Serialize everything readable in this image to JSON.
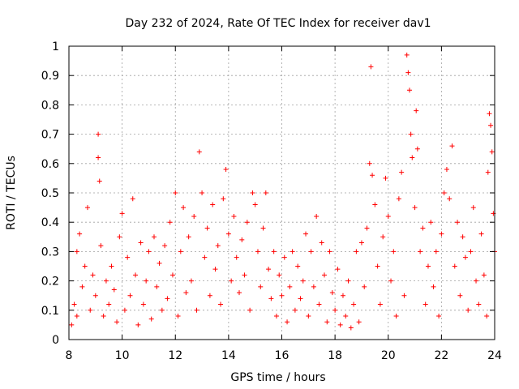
{
  "chart_data": {
    "type": "scatter",
    "title": "Day 232 of 2024, Rate Of TEC Index for receiver dav1",
    "xlabel": "GPS time / hours",
    "ylabel": "ROTI / TECUs",
    "xlim": [
      8,
      24
    ],
    "ylim": [
      0,
      1
    ],
    "xticks": [
      "8",
      "10",
      "12",
      "14",
      "16",
      "18",
      "20",
      "22",
      "24"
    ],
    "yticks": [
      "0",
      "0.1",
      "0.2",
      "0.3",
      "0.4",
      "0.5",
      "0.6",
      "0.7",
      "0.8",
      "0.9",
      "1"
    ],
    "grid": true,
    "marker": "+",
    "series_color": "#ff0000",
    "series": [
      {
        "name": "ROTI",
        "points": [
          [
            8.1,
            0.05
          ],
          [
            8.2,
            0.12
          ],
          [
            8.3,
            0.3
          ],
          [
            8.3,
            0.08
          ],
          [
            8.4,
            0.36
          ],
          [
            8.5,
            0.18
          ],
          [
            8.6,
            0.25
          ],
          [
            8.7,
            0.45
          ],
          [
            8.8,
            0.1
          ],
          [
            8.9,
            0.22
          ],
          [
            9.0,
            0.15
          ],
          [
            9.1,
            0.7
          ],
          [
            9.1,
            0.62
          ],
          [
            9.15,
            0.54
          ],
          [
            9.2,
            0.32
          ],
          [
            9.3,
            0.08
          ],
          [
            9.4,
            0.2
          ],
          [
            9.5,
            0.12
          ],
          [
            9.6,
            0.25
          ],
          [
            9.7,
            0.17
          ],
          [
            9.8,
            0.06
          ],
          [
            9.9,
            0.35
          ],
          [
            10.0,
            0.43
          ],
          [
            10.1,
            0.1
          ],
          [
            10.2,
            0.28
          ],
          [
            10.3,
            0.15
          ],
          [
            10.4,
            0.48
          ],
          [
            10.5,
            0.22
          ],
          [
            10.6,
            0.05
          ],
          [
            10.7,
            0.33
          ],
          [
            10.8,
            0.12
          ],
          [
            10.9,
            0.2
          ],
          [
            11.0,
            0.3
          ],
          [
            11.1,
            0.07
          ],
          [
            11.2,
            0.35
          ],
          [
            11.3,
            0.18
          ],
          [
            11.4,
            0.26
          ],
          [
            11.5,
            0.1
          ],
          [
            11.6,
            0.32
          ],
          [
            11.7,
            0.14
          ],
          [
            11.8,
            0.4
          ],
          [
            11.9,
            0.22
          ],
          [
            12.0,
            0.5
          ],
          [
            12.1,
            0.08
          ],
          [
            12.2,
            0.3
          ],
          [
            12.3,
            0.45
          ],
          [
            12.4,
            0.16
          ],
          [
            12.5,
            0.35
          ],
          [
            12.6,
            0.2
          ],
          [
            12.7,
            0.42
          ],
          [
            12.8,
            0.1
          ],
          [
            12.9,
            0.64
          ],
          [
            13.0,
            0.5
          ],
          [
            13.1,
            0.28
          ],
          [
            13.2,
            0.38
          ],
          [
            13.3,
            0.15
          ],
          [
            13.4,
            0.46
          ],
          [
            13.5,
            0.24
          ],
          [
            13.6,
            0.32
          ],
          [
            13.7,
            0.12
          ],
          [
            13.8,
            0.48
          ],
          [
            13.9,
            0.58
          ],
          [
            14.0,
            0.36
          ],
          [
            14.1,
            0.2
          ],
          [
            14.2,
            0.42
          ],
          [
            14.3,
            0.28
          ],
          [
            14.4,
            0.16
          ],
          [
            14.5,
            0.34
          ],
          [
            14.6,
            0.22
          ],
          [
            14.7,
            0.4
          ],
          [
            14.8,
            0.1
          ],
          [
            14.9,
            0.5
          ],
          [
            15.0,
            0.46
          ],
          [
            15.1,
            0.3
          ],
          [
            15.2,
            0.18
          ],
          [
            15.3,
            0.38
          ],
          [
            15.4,
            0.5
          ],
          [
            15.5,
            0.24
          ],
          [
            15.6,
            0.14
          ],
          [
            15.7,
            0.3
          ],
          [
            15.8,
            0.08
          ],
          [
            15.9,
            0.22
          ],
          [
            16.0,
            0.15
          ],
          [
            16.1,
            0.28
          ],
          [
            16.2,
            0.06
          ],
          [
            16.3,
            0.18
          ],
          [
            16.4,
            0.3
          ],
          [
            16.5,
            0.1
          ],
          [
            16.6,
            0.25
          ],
          [
            16.7,
            0.14
          ],
          [
            16.8,
            0.2
          ],
          [
            16.9,
            0.36
          ],
          [
            17.0,
            0.08
          ],
          [
            17.1,
            0.3
          ],
          [
            17.2,
            0.18
          ],
          [
            17.3,
            0.42
          ],
          [
            17.4,
            0.12
          ],
          [
            17.5,
            0.33
          ],
          [
            17.6,
            0.22
          ],
          [
            17.7,
            0.06
          ],
          [
            17.8,
            0.3
          ],
          [
            17.9,
            0.16
          ],
          [
            18.0,
            0.1
          ],
          [
            18.1,
            0.24
          ],
          [
            18.2,
            0.05
          ],
          [
            18.3,
            0.15
          ],
          [
            18.4,
            0.08
          ],
          [
            18.5,
            0.2
          ],
          [
            18.6,
            0.04
          ],
          [
            18.7,
            0.12
          ],
          [
            18.8,
            0.3
          ],
          [
            18.9,
            0.06
          ],
          [
            19.0,
            0.33
          ],
          [
            19.1,
            0.18
          ],
          [
            19.2,
            0.38
          ],
          [
            19.3,
            0.6
          ],
          [
            19.35,
            0.93
          ],
          [
            19.4,
            0.56
          ],
          [
            19.5,
            0.46
          ],
          [
            19.6,
            0.25
          ],
          [
            19.7,
            0.12
          ],
          [
            19.8,
            0.35
          ],
          [
            19.9,
            0.55
          ],
          [
            20.0,
            0.42
          ],
          [
            20.1,
            0.2
          ],
          [
            20.2,
            0.3
          ],
          [
            20.3,
            0.08
          ],
          [
            20.4,
            0.48
          ],
          [
            20.5,
            0.57
          ],
          [
            20.6,
            0.15
          ],
          [
            20.7,
            0.97
          ],
          [
            20.75,
            0.91
          ],
          [
            20.8,
            0.85
          ],
          [
            20.85,
            0.7
          ],
          [
            20.9,
            0.62
          ],
          [
            21.0,
            0.45
          ],
          [
            21.05,
            0.78
          ],
          [
            21.1,
            0.65
          ],
          [
            21.2,
            0.3
          ],
          [
            21.3,
            0.38
          ],
          [
            21.4,
            0.12
          ],
          [
            21.5,
            0.25
          ],
          [
            21.6,
            0.4
          ],
          [
            21.7,
            0.18
          ],
          [
            21.8,
            0.3
          ],
          [
            21.9,
            0.08
          ],
          [
            22.0,
            0.36
          ],
          [
            22.1,
            0.5
          ],
          [
            22.2,
            0.58
          ],
          [
            22.3,
            0.48
          ],
          [
            22.4,
            0.66
          ],
          [
            22.5,
            0.25
          ],
          [
            22.6,
            0.4
          ],
          [
            22.7,
            0.15
          ],
          [
            22.8,
            0.35
          ],
          [
            22.9,
            0.28
          ],
          [
            23.0,
            0.1
          ],
          [
            23.1,
            0.3
          ],
          [
            23.2,
            0.45
          ],
          [
            23.3,
            0.2
          ],
          [
            23.4,
            0.12
          ],
          [
            23.5,
            0.36
          ],
          [
            23.6,
            0.22
          ],
          [
            23.7,
            0.08
          ],
          [
            23.75,
            0.57
          ],
          [
            23.8,
            0.77
          ],
          [
            23.85,
            0.73
          ],
          [
            23.9,
            0.64
          ],
          [
            23.95,
            0.43
          ],
          [
            24.0,
            0.3
          ]
        ]
      }
    ]
  }
}
